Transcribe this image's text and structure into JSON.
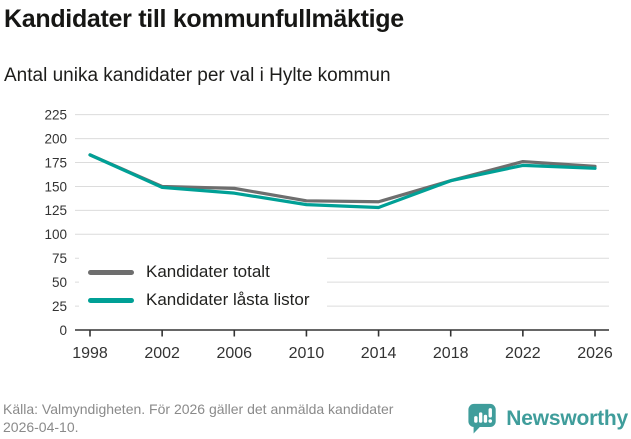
{
  "header": {
    "title": "Kandidater till kommunfullmäktige",
    "subtitle": "Antal unika kandidater per val i Hylte kommun"
  },
  "chart_data": {
    "type": "line",
    "x": [
      1998,
      2002,
      2006,
      2010,
      2014,
      2018,
      2022,
      2026
    ],
    "series": [
      {
        "name": "Kandidater totalt",
        "color": "#6E6E6E",
        "values": [
          183,
          150,
          148,
          135,
          134,
          156,
          176,
          171
        ]
      },
      {
        "name": "Kandidater låsta listor",
        "color": "#00A096",
        "values": [
          183,
          149,
          143,
          131,
          128,
          156,
          172,
          169
        ]
      }
    ],
    "ylim": [
      0,
      225
    ],
    "ytick_step": 25,
    "grid": true,
    "legend_position": "inside-bottom-left",
    "gridline_color": "#dcdcdc",
    "axis_color": "#333333"
  },
  "footer": {
    "source": "Källa: Valmyndigheten. För 2026 gäller det anmälda kandidater 2026-04-10.",
    "brand": "Newsworthy",
    "brand_color": "#3f9d9b"
  }
}
